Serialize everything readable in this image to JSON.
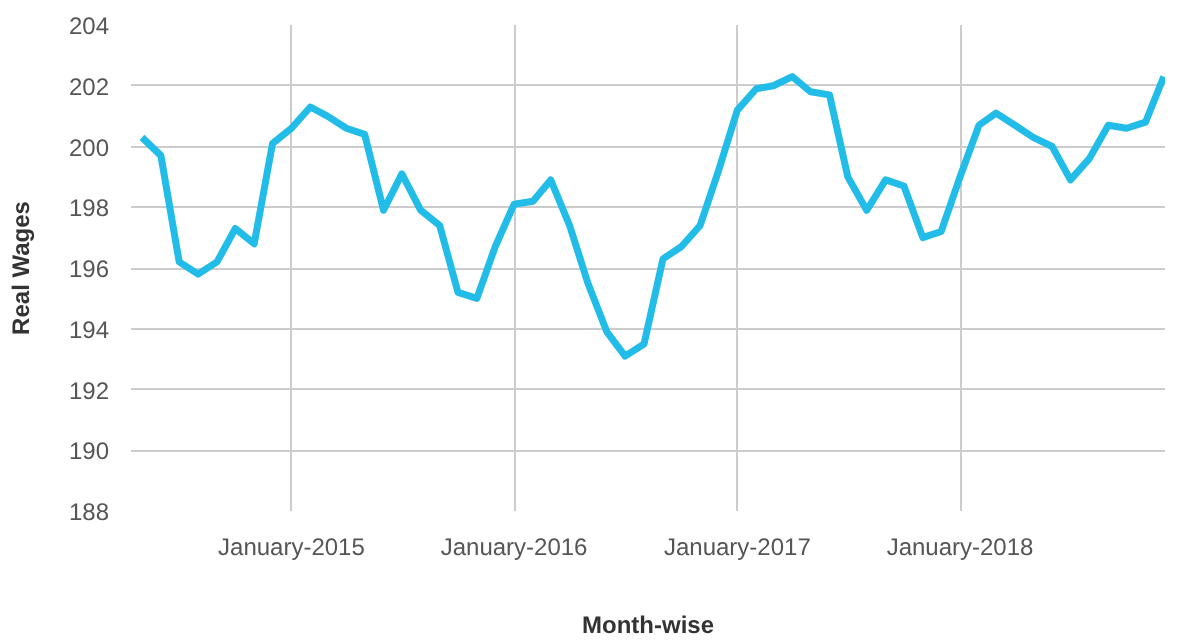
{
  "chart_data": {
    "type": "line",
    "xlabel": "Month-wise",
    "ylabel": "Real Wages",
    "x": [
      "2014-05",
      "2014-06",
      "2014-07",
      "2014-08",
      "2014-09",
      "2014-10",
      "2014-11",
      "2014-12",
      "2015-01",
      "2015-02",
      "2015-03",
      "2015-04",
      "2015-05",
      "2015-06",
      "2015-07",
      "2015-08",
      "2015-09",
      "2015-10",
      "2015-11",
      "2015-12",
      "2016-01",
      "2016-02",
      "2016-03",
      "2016-04",
      "2016-05",
      "2016-06",
      "2016-07",
      "2016-08",
      "2016-09",
      "2016-10",
      "2016-11",
      "2016-12",
      "2017-01",
      "2017-02",
      "2017-03",
      "2017-04",
      "2017-05",
      "2017-06",
      "2017-07",
      "2017-08",
      "2017-09",
      "2017-10",
      "2017-11",
      "2017-12",
      "2018-01",
      "2018-02",
      "2018-03",
      "2018-04",
      "2018-05",
      "2018-06",
      "2018-07",
      "2018-08",
      "2018-09",
      "2018-10",
      "2018-11",
      "2018-12"
    ],
    "series": [
      {
        "color": "#22bce8",
        "values": [
          200.3,
          199.7,
          196.2,
          195.8,
          196.2,
          197.3,
          196.8,
          200.1,
          200.6,
          201.3,
          201.0,
          200.6,
          200.4,
          197.9,
          199.1,
          197.9,
          197.4,
          195.2,
          195.0,
          196.7,
          198.1,
          198.2,
          198.9,
          197.4,
          195.5,
          193.9,
          193.1,
          193.5,
          196.3,
          196.7,
          197.4,
          199.2,
          201.2,
          201.9,
          202.0,
          202.3,
          201.8,
          201.7,
          199.0,
          197.9,
          198.9,
          198.7,
          197.0,
          197.2,
          199.0,
          200.7,
          201.1,
          200.7,
          200.3,
          200.0,
          198.9,
          199.6,
          200.7,
          200.6,
          200.8,
          202.3
        ]
      }
    ],
    "xlim": [
      "2014-04-13",
      "2018-12-03"
    ],
    "xticks": [
      {
        "value": "2015-01",
        "label": "January-2015"
      },
      {
        "value": "2016-01",
        "label": "January-2016"
      },
      {
        "value": "2017-01",
        "label": "January-2017"
      },
      {
        "value": "2018-01",
        "label": "January-2018"
      }
    ],
    "ylim": [
      188,
      204
    ],
    "yticks": [
      188,
      190,
      192,
      194,
      196,
      198,
      200,
      202,
      204
    ],
    "grid": true,
    "marker": "none",
    "line_style": "solid"
  }
}
